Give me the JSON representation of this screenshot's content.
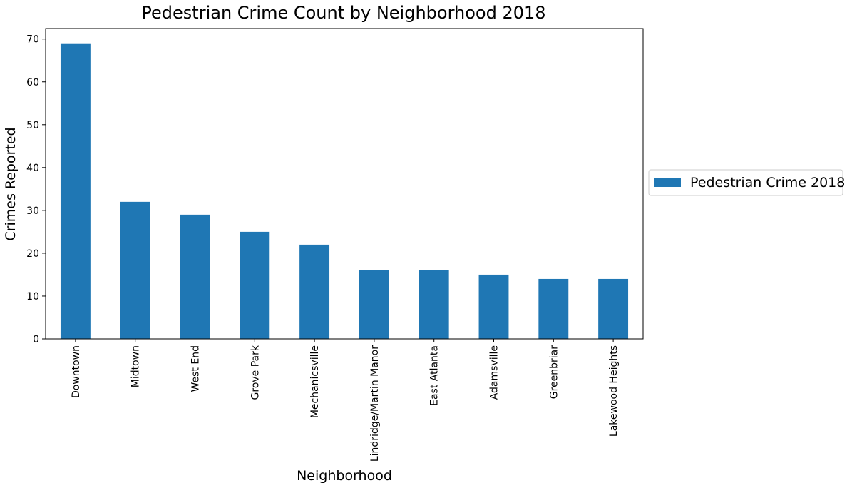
{
  "chart_data": {
    "type": "bar",
    "title": "Pedestrian Crime Count by Neighborhood 2018",
    "xlabel": "Neighborhood",
    "ylabel": "Crimes Reported",
    "categories": [
      "Downtown",
      "Midtown",
      "West End",
      "Grove Park",
      "Mechanicsville",
      "Lindridge/Martin Manor",
      "East Atlanta",
      "Adamsville",
      "Greenbriar",
      "Lakewood Heights"
    ],
    "series": [
      {
        "name": "Pedestrian Crime 2018",
        "values": [
          69,
          32,
          29,
          25,
          22,
          16,
          16,
          15,
          14,
          14
        ],
        "color": "#1f77b4"
      }
    ],
    "ylim": [
      0,
      72.45
    ],
    "yticks": [
      0,
      10,
      20,
      30,
      40,
      50,
      60,
      70
    ],
    "grid": false,
    "legend_position": "center-right outside"
  }
}
